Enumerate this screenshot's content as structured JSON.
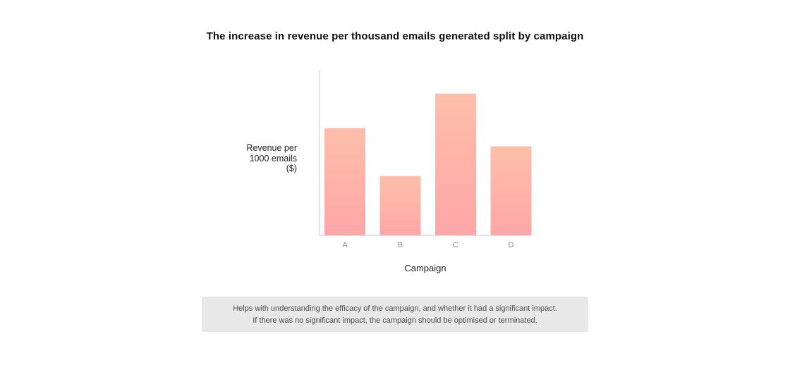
{
  "chart_data": {
    "type": "bar",
    "title": "The increase in revenue per thousand emails generated split by campaign",
    "xlabel": "Campaign",
    "ylabel_lines": [
      "Revenue per",
      "1000 emails",
      "($)"
    ],
    "categories": [
      "A",
      "B",
      "C",
      "D"
    ],
    "values": [
      65,
      36,
      86,
      54
    ],
    "ylim": [
      0,
      100
    ],
    "grid": false,
    "legend": "none",
    "bar_gradient": [
      "#fdbfa9",
      "#ffa6a9"
    ],
    "axis_color": "#c8c8c8",
    "tick_label_color": "#8a8a8a"
  },
  "note": {
    "line1": "Helps with understanding the efficacy of the campaign, and whether it had a significant impact.",
    "line2": "If there was no significant impact, the campaign should be optimised or terminated."
  }
}
